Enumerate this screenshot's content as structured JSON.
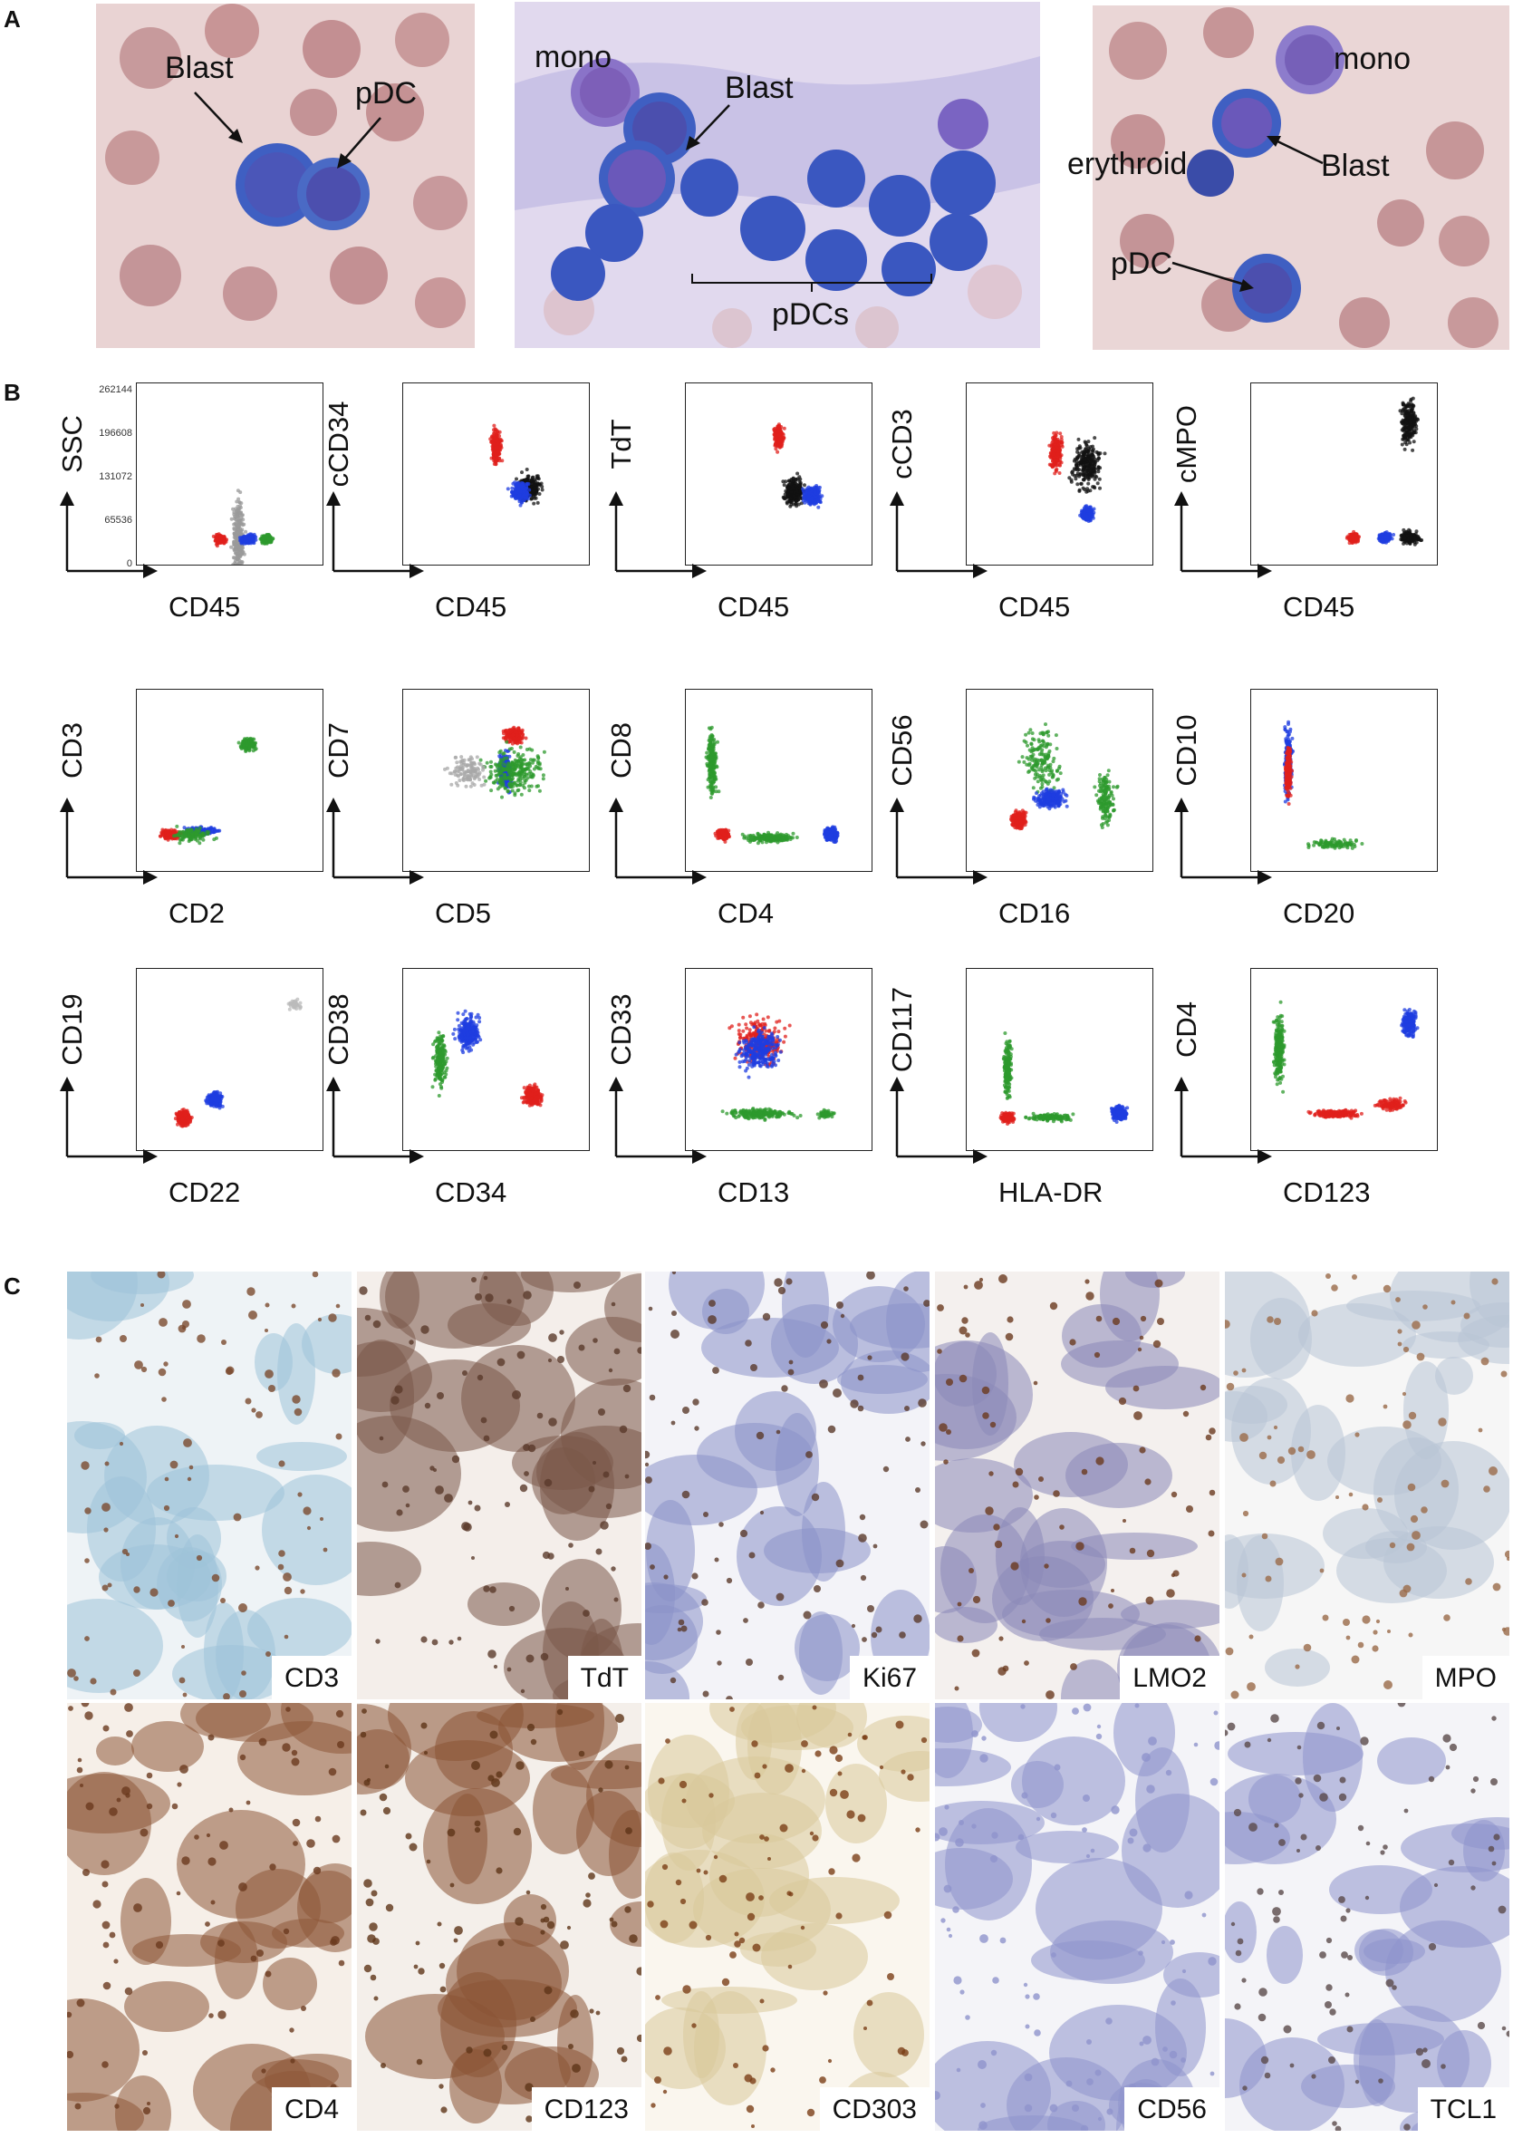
{
  "panels": {
    "a": "A",
    "b": "B",
    "c": "C"
  },
  "panel_a": {
    "photo1": {
      "blast": "Blast",
      "pdc": "pDC"
    },
    "photo2": {
      "mono": "mono",
      "blast": "Blast",
      "pdcs": "pDCs"
    },
    "photo3": {
      "mono": "mono",
      "erythroid": "erythroid",
      "blast": "Blast",
      "pdc": "pDC"
    }
  },
  "panel_b": {
    "ssc_ticks": [
      "262144",
      "196608",
      "131072",
      "65536",
      "0"
    ],
    "plots": [
      {
        "y": "SSC",
        "x": "CD45"
      },
      {
        "y": "cCD34",
        "x": "CD45"
      },
      {
        "y": "TdT",
        "x": "CD45"
      },
      {
        "y": "cCD3",
        "x": "CD45"
      },
      {
        "y": "cMPO",
        "x": "CD45"
      },
      {
        "y": "CD3",
        "x": "CD2"
      },
      {
        "y": "CD7",
        "x": "CD5"
      },
      {
        "y": "CD8",
        "x": "CD4"
      },
      {
        "y": "CD56",
        "x": "CD16"
      },
      {
        "y": "CD10",
        "x": "CD20"
      },
      {
        "y": "CD19",
        "x": "CD22"
      },
      {
        "y": "CD38",
        "x": "CD34"
      },
      {
        "y": "CD33",
        "x": "CD13"
      },
      {
        "y": "CD117",
        "x": "HLA-DR"
      },
      {
        "y": "CD4",
        "x": "CD123"
      }
    ],
    "population_colors": {
      "blasts": "#e0201c",
      "pdcs": "#1f3ee0",
      "lymphocytes": "#2e9a2e",
      "other": "#111111"
    }
  },
  "panel_c": {
    "tiles": [
      "CD3",
      "TdT",
      "Ki67",
      "LMO2",
      "MPO",
      "CD4",
      "CD123",
      "CD303",
      "CD56",
      "TCL1"
    ]
  }
}
